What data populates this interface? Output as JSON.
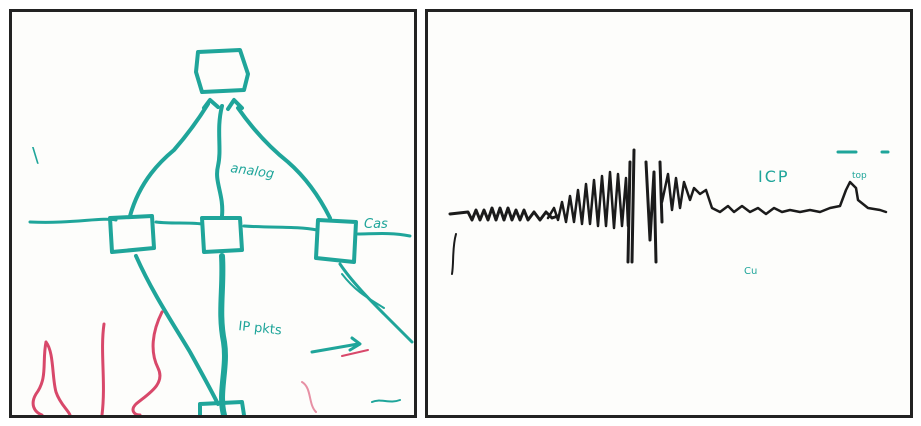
{
  "panels": [
    {
      "id": "left",
      "description_name": "whiteboard-network-diagram",
      "ink_colors": {
        "primary": "#1fa59a",
        "secondary": "#d8486a"
      },
      "handwriting": {
        "left_mark": "\\",
        "top_edge_label": "analog",
        "right_edge_label": "Cas",
        "center_label": "IP pkts"
      }
    },
    {
      "id": "right",
      "description_name": "whiteboard-signal-trace",
      "ink_colors": {
        "trace": "#1b1b1b",
        "labels": "#1fa59a"
      },
      "handwriting": {
        "icp_label": "ICP",
        "bottom_label": "Cu",
        "small_note": "top"
      }
    }
  ]
}
